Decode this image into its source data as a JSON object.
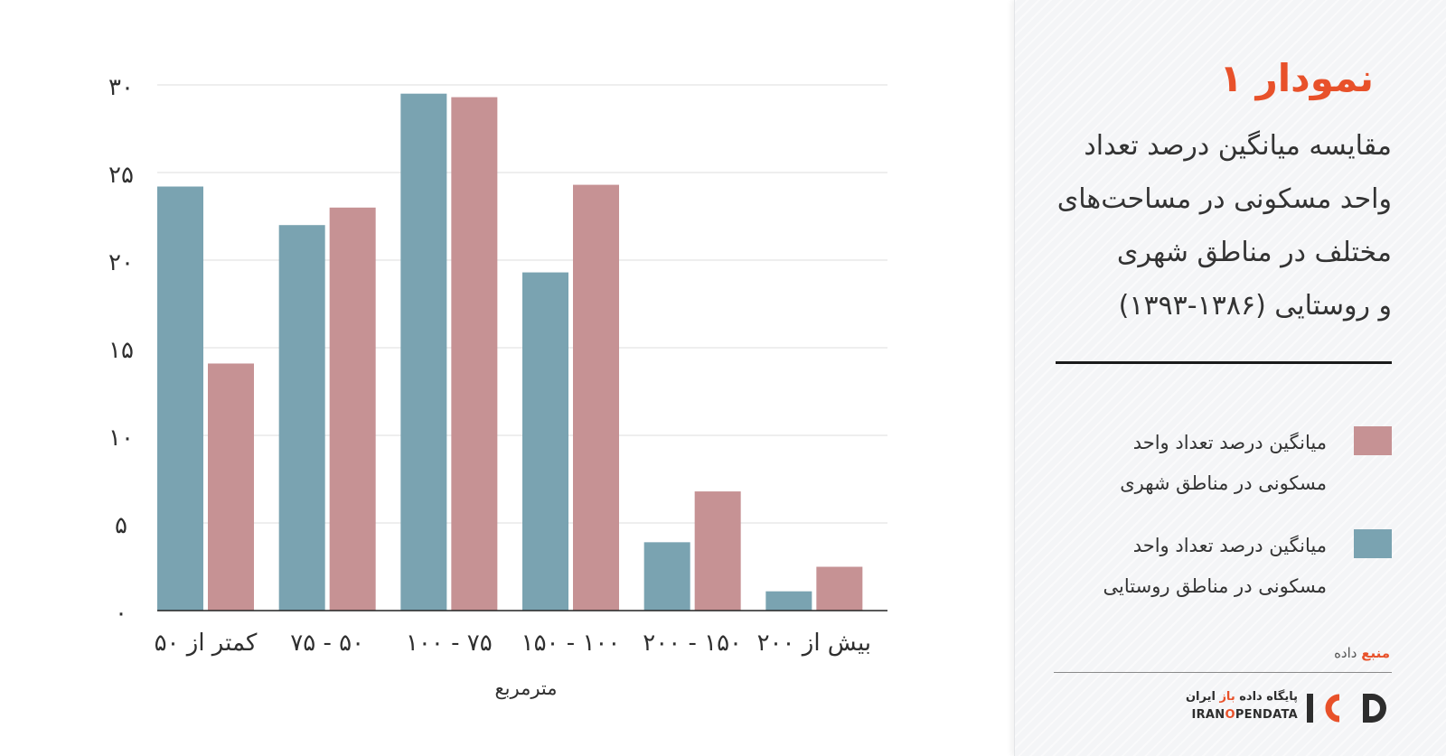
{
  "chart_data": {
    "type": "bar",
    "categories": [
      "کمتر از ۵۰",
      "۵۰ - ۷۵",
      "۷۵ - ۱۰۰",
      "۱۰۰ - ۱۵۰",
      "۱۵۰ - ۲۰۰",
      "بیش از ۲۰۰"
    ],
    "series": [
      {
        "name": "میانگین درصد تعداد واحد مسکونی در مناطق روستایی",
        "color": "#7aa3b1",
        "values": [
          24.2,
          22.0,
          29.5,
          19.3,
          3.9,
          1.1
        ]
      },
      {
        "name": "میانگین درصد تعداد واحد مسکونی در مناطق شهری",
        "color": "#c69294",
        "values": [
          14.1,
          23.0,
          29.3,
          24.3,
          6.8,
          2.5
        ]
      }
    ],
    "title": "مقایسه میانگین درصد تعداد واحد مسکونی در مساحت‌های مختلف در مناطق شهری و روستایی  (۱۳۸۶-۱۳۹۳)",
    "xlabel": "مترمربع",
    "ylabel": "",
    "ylim": [
      0,
      30
    ],
    "yticks": [
      0,
      5,
      10,
      15,
      20,
      25,
      30
    ],
    "ytick_labels": [
      "۰",
      "۵",
      "۱۰",
      "۱۵",
      "۲۰",
      "۲۵",
      "۳۰"
    ],
    "grid": true,
    "legend_position": "right-panel"
  },
  "panel": {
    "figure_number": "نمودار ۱",
    "title_lines": [
      "مقایسه میانگین درصد تعداد",
      "واحد مسکونی در مساحت‌های",
      "مختلف در مناطق شهری",
      "و روستایی  (۱۳۸۶-۱۳۹۳)"
    ],
    "legend": [
      {
        "lines": [
          "میانگین درصد تعداد واحد",
          "مسکونی در مناطق شهری"
        ],
        "color": "#c69294"
      },
      {
        "lines": [
          "میانگین درصد تعداد واحد",
          "مسکونی در مناطق روستایی"
        ],
        "color": "#7aa3b1"
      }
    ],
    "source_accent": "منبع",
    "source_rest": " داده"
  },
  "brand": {
    "name_fa_prefix": "پایگاه داده ",
    "name_fa_accent": "باز",
    "name_fa_suffix": " ایران",
    "name_en_a": "IRAN",
    "name_en_accent": "O",
    "name_en_b": "PENDATA",
    "logo_letters": "IOD",
    "accent_color": "#e8512a"
  }
}
